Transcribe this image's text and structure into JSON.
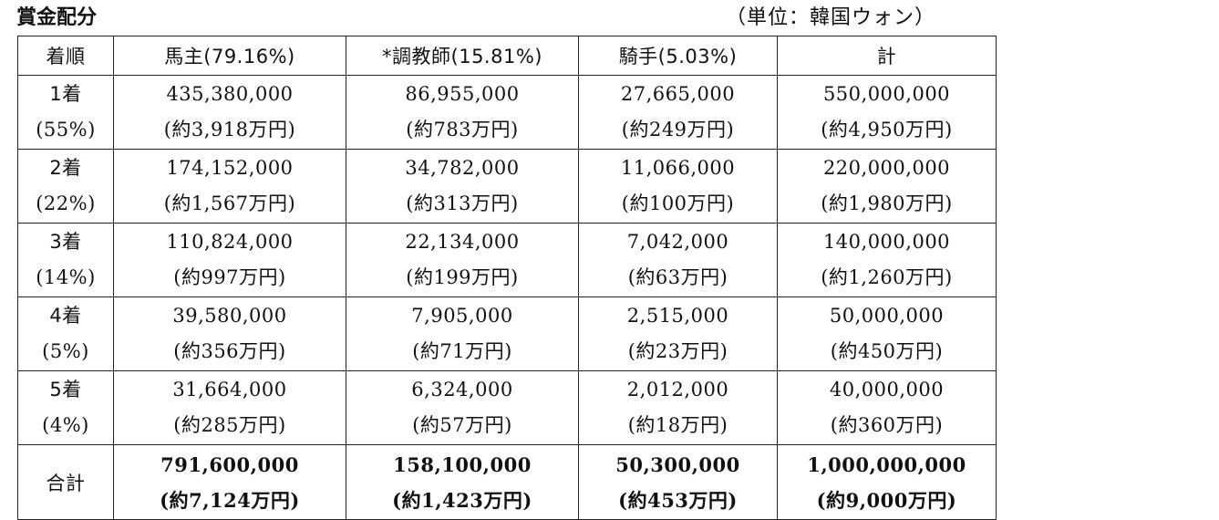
{
  "title": "賞金配分",
  "unit_note": "（単位：韓国ウォン）",
  "headers": [
    "着順",
    "馬主(79.16%)",
    "*調教師(15.81%)",
    "騎手(5.03%)",
    "計"
  ],
  "rows": [
    {
      "rank": "1着",
      "share": "(55%)",
      "cells": [
        {
          "krw": "435,380,000",
          "jpy": "(約3,918万円)"
        },
        {
          "krw": "86,955,000",
          "jpy": "(約783万円)"
        },
        {
          "krw": "27,665,000",
          "jpy": "(約249万円)"
        },
        {
          "krw": "550,000,000",
          "jpy": "(約4,950万円)"
        }
      ]
    },
    {
      "rank": "2着",
      "share": "(22%)",
      "cells": [
        {
          "krw": "174,152,000",
          "jpy": "(約1,567万円)"
        },
        {
          "krw": "34,782,000",
          "jpy": "(約313万円)"
        },
        {
          "krw": "11,066,000",
          "jpy": "(約100万円)"
        },
        {
          "krw": "220,000,000",
          "jpy": "(約1,980万円)"
        }
      ]
    },
    {
      "rank": "3着",
      "share": "(14%)",
      "cells": [
        {
          "krw": "110,824,000",
          "jpy": "(約997万円)"
        },
        {
          "krw": "22,134,000",
          "jpy": "(約199万円)"
        },
        {
          "krw": "7,042,000",
          "jpy": "(約63万円)"
        },
        {
          "krw": "140,000,000",
          "jpy": "(約1,260万円)"
        }
      ]
    },
    {
      "rank": "4着",
      "share": "(5%)",
      "cells": [
        {
          "krw": "39,580,000",
          "jpy": "(約356万円)"
        },
        {
          "krw": "7,905,000",
          "jpy": "(約71万円)"
        },
        {
          "krw": "2,515,000",
          "jpy": "(約23万円)"
        },
        {
          "krw": "50,000,000",
          "jpy": "(約450万円)"
        }
      ]
    },
    {
      "rank": "5着",
      "share": "(4%)",
      "cells": [
        {
          "krw": "31,664,000",
          "jpy": "(約285万円)"
        },
        {
          "krw": "6,324,000",
          "jpy": "(約57万円)"
        },
        {
          "krw": "2,012,000",
          "jpy": "(約18万円)"
        },
        {
          "krw": "40,000,000",
          "jpy": "(約360万円)"
        }
      ]
    }
  ],
  "total": {
    "label": "合計",
    "cells": [
      {
        "krw": "791,600,000",
        "jpy": "(約7,124万円)"
      },
      {
        "krw": "158,100,000",
        "jpy": "(約1,423万円)"
      },
      {
        "krw": "50,300,000",
        "jpy": "(約453万円)"
      },
      {
        "krw": "1,000,000,000",
        "jpy": "(約9,000万円)"
      }
    ]
  }
}
